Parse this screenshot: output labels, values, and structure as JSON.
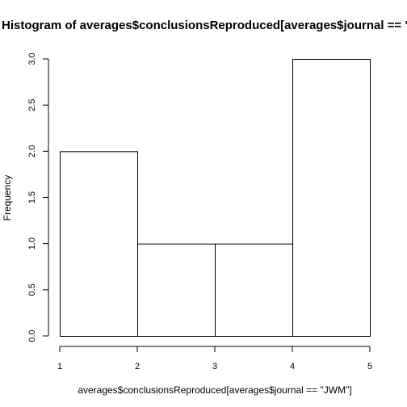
{
  "chart_data": {
    "type": "bar",
    "title": "Histogram of averages$conclusionsReproduced[averages$journal == \"JWM\"]",
    "xlabel": "averages$conclusionsReproduced[averages$journal == \"JWM\"]",
    "ylabel": "Frequency",
    "bins": [
      {
        "from": 1,
        "to": 2,
        "count": 2
      },
      {
        "from": 2,
        "to": 3,
        "count": 1
      },
      {
        "from": 3,
        "to": 4,
        "count": 1
      },
      {
        "from": 4,
        "to": 5,
        "count": 3
      }
    ],
    "xlim": [
      1,
      5
    ],
    "ylim": [
      0,
      3
    ],
    "xticks": [
      "1",
      "2",
      "3",
      "4",
      "5"
    ],
    "yticks": [
      "0.0",
      "0.5",
      "1.0",
      "1.5",
      "2.0",
      "2.5",
      "3.0"
    ],
    "grid": false,
    "bar_fill": "#ffffff",
    "bar_stroke": "#000000"
  }
}
